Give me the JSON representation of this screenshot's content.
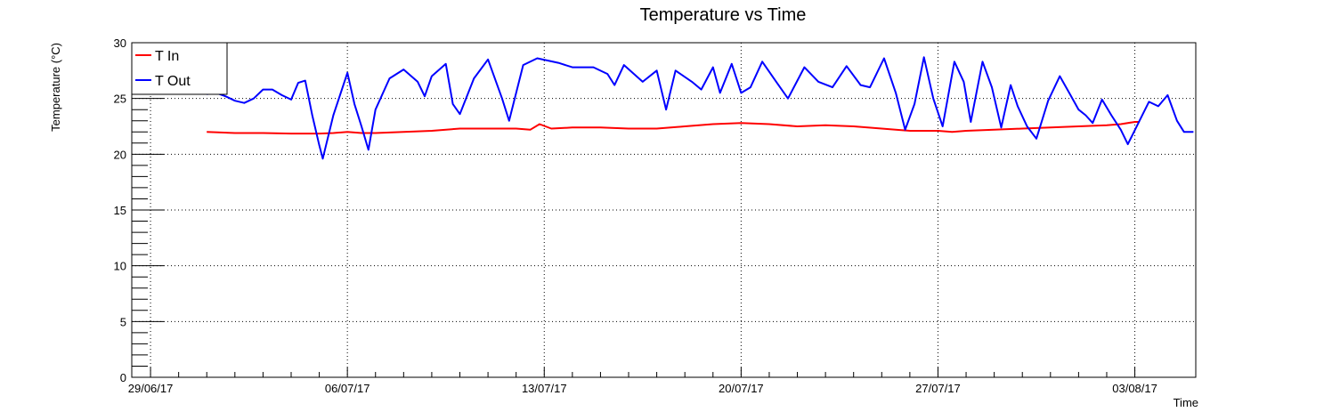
{
  "chart_data": {
    "type": "line",
    "title": "Temperature vs Time",
    "xlabel": "Time",
    "ylabel": "Temperature (°C)",
    "ylim": [
      0,
      30
    ],
    "xlim": [
      "2017-06-28T08:00",
      "2017-08-05T04:00"
    ],
    "x_ticks": [
      "29/06/17",
      "06/07/17",
      "13/07/17",
      "20/07/17",
      "27/07/17",
      "03/08/17"
    ],
    "y_ticks": [
      "0",
      "5",
      "10",
      "15",
      "20",
      "25",
      "30"
    ],
    "grid": true,
    "legend_position": "top-left",
    "series": [
      {
        "name": "T In",
        "color": "#ff0000",
        "points": [
          [
            "2017-07-01T00:00",
            22.0
          ],
          [
            "2017-07-02T00:00",
            21.9
          ],
          [
            "2017-07-03T00:00",
            21.9
          ],
          [
            "2017-07-04T00:00",
            21.85
          ],
          [
            "2017-07-05T00:00",
            21.85
          ],
          [
            "2017-07-05T12:00",
            21.9
          ],
          [
            "2017-07-06T00:00",
            22.0
          ],
          [
            "2017-07-06T12:00",
            21.9
          ],
          [
            "2017-07-07T00:00",
            21.9
          ],
          [
            "2017-07-08T00:00",
            22.0
          ],
          [
            "2017-07-09T00:00",
            22.1
          ],
          [
            "2017-07-10T00:00",
            22.3
          ],
          [
            "2017-07-11T00:00",
            22.3
          ],
          [
            "2017-07-12T00:00",
            22.3
          ],
          [
            "2017-07-12T12:00",
            22.2
          ],
          [
            "2017-07-12T20:00",
            22.7
          ],
          [
            "2017-07-13T06:00",
            22.3
          ],
          [
            "2017-07-14T00:00",
            22.4
          ],
          [
            "2017-07-15T00:00",
            22.4
          ],
          [
            "2017-07-16T00:00",
            22.3
          ],
          [
            "2017-07-17T00:00",
            22.3
          ],
          [
            "2017-07-18T00:00",
            22.5
          ],
          [
            "2017-07-19T00:00",
            22.7
          ],
          [
            "2017-07-20T00:00",
            22.8
          ],
          [
            "2017-07-21T00:00",
            22.7
          ],
          [
            "2017-07-22T00:00",
            22.5
          ],
          [
            "2017-07-23T00:00",
            22.6
          ],
          [
            "2017-07-24T00:00",
            22.5
          ],
          [
            "2017-07-25T00:00",
            22.3
          ],
          [
            "2017-07-26T00:00",
            22.1
          ],
          [
            "2017-07-27T00:00",
            22.1
          ],
          [
            "2017-07-27T12:00",
            22.0
          ],
          [
            "2017-07-28T00:00",
            22.1
          ],
          [
            "2017-07-29T00:00",
            22.2
          ],
          [
            "2017-07-30T00:00",
            22.3
          ],
          [
            "2017-07-31T00:00",
            22.4
          ],
          [
            "2017-08-01T00:00",
            22.5
          ],
          [
            "2017-08-02T00:00",
            22.6
          ],
          [
            "2017-08-02T12:00",
            22.7
          ],
          [
            "2017-08-03T00:00",
            22.9
          ],
          [
            "2017-08-03T04:00",
            22.9
          ]
        ]
      },
      {
        "name": "T Out",
        "color": "#0000ff",
        "points": [
          [
            "2017-07-01T00:00",
            25.4
          ],
          [
            "2017-07-01T08:00",
            25.5
          ],
          [
            "2017-07-01T16:00",
            25.2
          ],
          [
            "2017-07-02T00:00",
            24.8
          ],
          [
            "2017-07-02T08:00",
            24.6
          ],
          [
            "2017-07-02T16:00",
            25.0
          ],
          [
            "2017-07-03T00:00",
            25.8
          ],
          [
            "2017-07-03T08:00",
            25.8
          ],
          [
            "2017-07-03T16:00",
            25.3
          ],
          [
            "2017-07-04T00:00",
            24.9
          ],
          [
            "2017-07-04T06:00",
            26.4
          ],
          [
            "2017-07-04T12:00",
            26.6
          ],
          [
            "2017-07-04T18:00",
            23.5
          ],
          [
            "2017-07-05T00:00",
            20.8
          ],
          [
            "2017-07-05T03:00",
            19.6
          ],
          [
            "2017-07-05T12:00",
            23.5
          ],
          [
            "2017-07-06T00:00",
            27.3
          ],
          [
            "2017-07-06T06:00",
            24.5
          ],
          [
            "2017-07-06T12:00",
            22.5
          ],
          [
            "2017-07-06T18:00",
            20.4
          ],
          [
            "2017-07-07T00:00",
            24.0
          ],
          [
            "2017-07-07T12:00",
            26.8
          ],
          [
            "2017-07-08T00:00",
            27.6
          ],
          [
            "2017-07-08T12:00",
            26.5
          ],
          [
            "2017-07-08T18:00",
            25.2
          ],
          [
            "2017-07-09T00:00",
            27.0
          ],
          [
            "2017-07-09T12:00",
            28.1
          ],
          [
            "2017-07-09T18:00",
            24.5
          ],
          [
            "2017-07-10T00:00",
            23.6
          ],
          [
            "2017-07-10T12:00",
            26.8
          ],
          [
            "2017-07-11T00:00",
            28.5
          ],
          [
            "2017-07-11T12:00",
            25.0
          ],
          [
            "2017-07-11T18:00",
            23.0
          ],
          [
            "2017-07-12T06:00",
            28.0
          ],
          [
            "2017-07-12T18:00",
            28.6
          ],
          [
            "2017-07-13T12:00",
            28.2
          ],
          [
            "2017-07-14T00:00",
            27.8
          ],
          [
            "2017-07-14T18:00",
            27.8
          ],
          [
            "2017-07-15T06:00",
            27.2
          ],
          [
            "2017-07-15T12:00",
            26.2
          ],
          [
            "2017-07-15T20:00",
            28.0
          ],
          [
            "2017-07-16T12:00",
            26.5
          ],
          [
            "2017-07-17T00:00",
            27.5
          ],
          [
            "2017-07-17T08:00",
            24.0
          ],
          [
            "2017-07-17T16:00",
            27.5
          ],
          [
            "2017-07-18T06:00",
            26.5
          ],
          [
            "2017-07-18T14:00",
            25.8
          ],
          [
            "2017-07-19T00:00",
            27.8
          ],
          [
            "2017-07-19T06:00",
            25.5
          ],
          [
            "2017-07-19T16:00",
            28.1
          ],
          [
            "2017-07-20T00:00",
            25.5
          ],
          [
            "2017-07-20T08:00",
            26.0
          ],
          [
            "2017-07-20T18:00",
            28.3
          ],
          [
            "2017-07-21T06:00",
            26.5
          ],
          [
            "2017-07-21T16:00",
            25.0
          ],
          [
            "2017-07-22T06:00",
            27.8
          ],
          [
            "2017-07-22T18:00",
            26.5
          ],
          [
            "2017-07-23T06:00",
            26.0
          ],
          [
            "2017-07-23T18:00",
            27.9
          ],
          [
            "2017-07-24T06:00",
            26.2
          ],
          [
            "2017-07-24T14:00",
            26.0
          ],
          [
            "2017-07-25T02:00",
            28.6
          ],
          [
            "2017-07-25T12:00",
            25.5
          ],
          [
            "2017-07-25T20:00",
            22.2
          ],
          [
            "2017-07-26T04:00",
            24.5
          ],
          [
            "2017-07-26T12:00",
            28.7
          ],
          [
            "2017-07-26T20:00",
            25.0
          ],
          [
            "2017-07-27T04:00",
            22.5
          ],
          [
            "2017-07-27T14:00",
            28.3
          ],
          [
            "2017-07-27T22:00",
            26.5
          ],
          [
            "2017-07-28T04:00",
            22.9
          ],
          [
            "2017-07-28T14:00",
            28.3
          ],
          [
            "2017-07-28T22:00",
            26.0
          ],
          [
            "2017-07-29T06:00",
            22.4
          ],
          [
            "2017-07-29T14:00",
            26.2
          ],
          [
            "2017-07-29T20:00",
            24.3
          ],
          [
            "2017-07-30T04:00",
            22.5
          ],
          [
            "2017-07-30T12:00",
            21.4
          ],
          [
            "2017-07-30T22:00",
            24.8
          ],
          [
            "2017-07-31T08:00",
            27.0
          ],
          [
            "2017-07-31T16:00",
            25.5
          ],
          [
            "2017-08-01T00:00",
            24.0
          ],
          [
            "2017-08-01T06:00",
            23.5
          ],
          [
            "2017-08-01T12:00",
            22.8
          ],
          [
            "2017-08-01T20:00",
            24.9
          ],
          [
            "2017-08-02T04:00",
            23.5
          ],
          [
            "2017-08-02T12:00",
            22.2
          ],
          [
            "2017-08-02T18:00",
            20.9
          ],
          [
            "2017-08-03T04:00",
            23.0
          ],
          [
            "2017-08-03T12:00",
            24.7
          ],
          [
            "2017-08-03T20:00",
            24.3
          ],
          [
            "2017-08-04T04:00",
            25.3
          ],
          [
            "2017-08-04T12:00",
            23.0
          ],
          [
            "2017-08-04T18:00",
            22.0
          ],
          [
            "2017-08-05T02:00",
            22.0
          ]
        ]
      }
    ]
  }
}
